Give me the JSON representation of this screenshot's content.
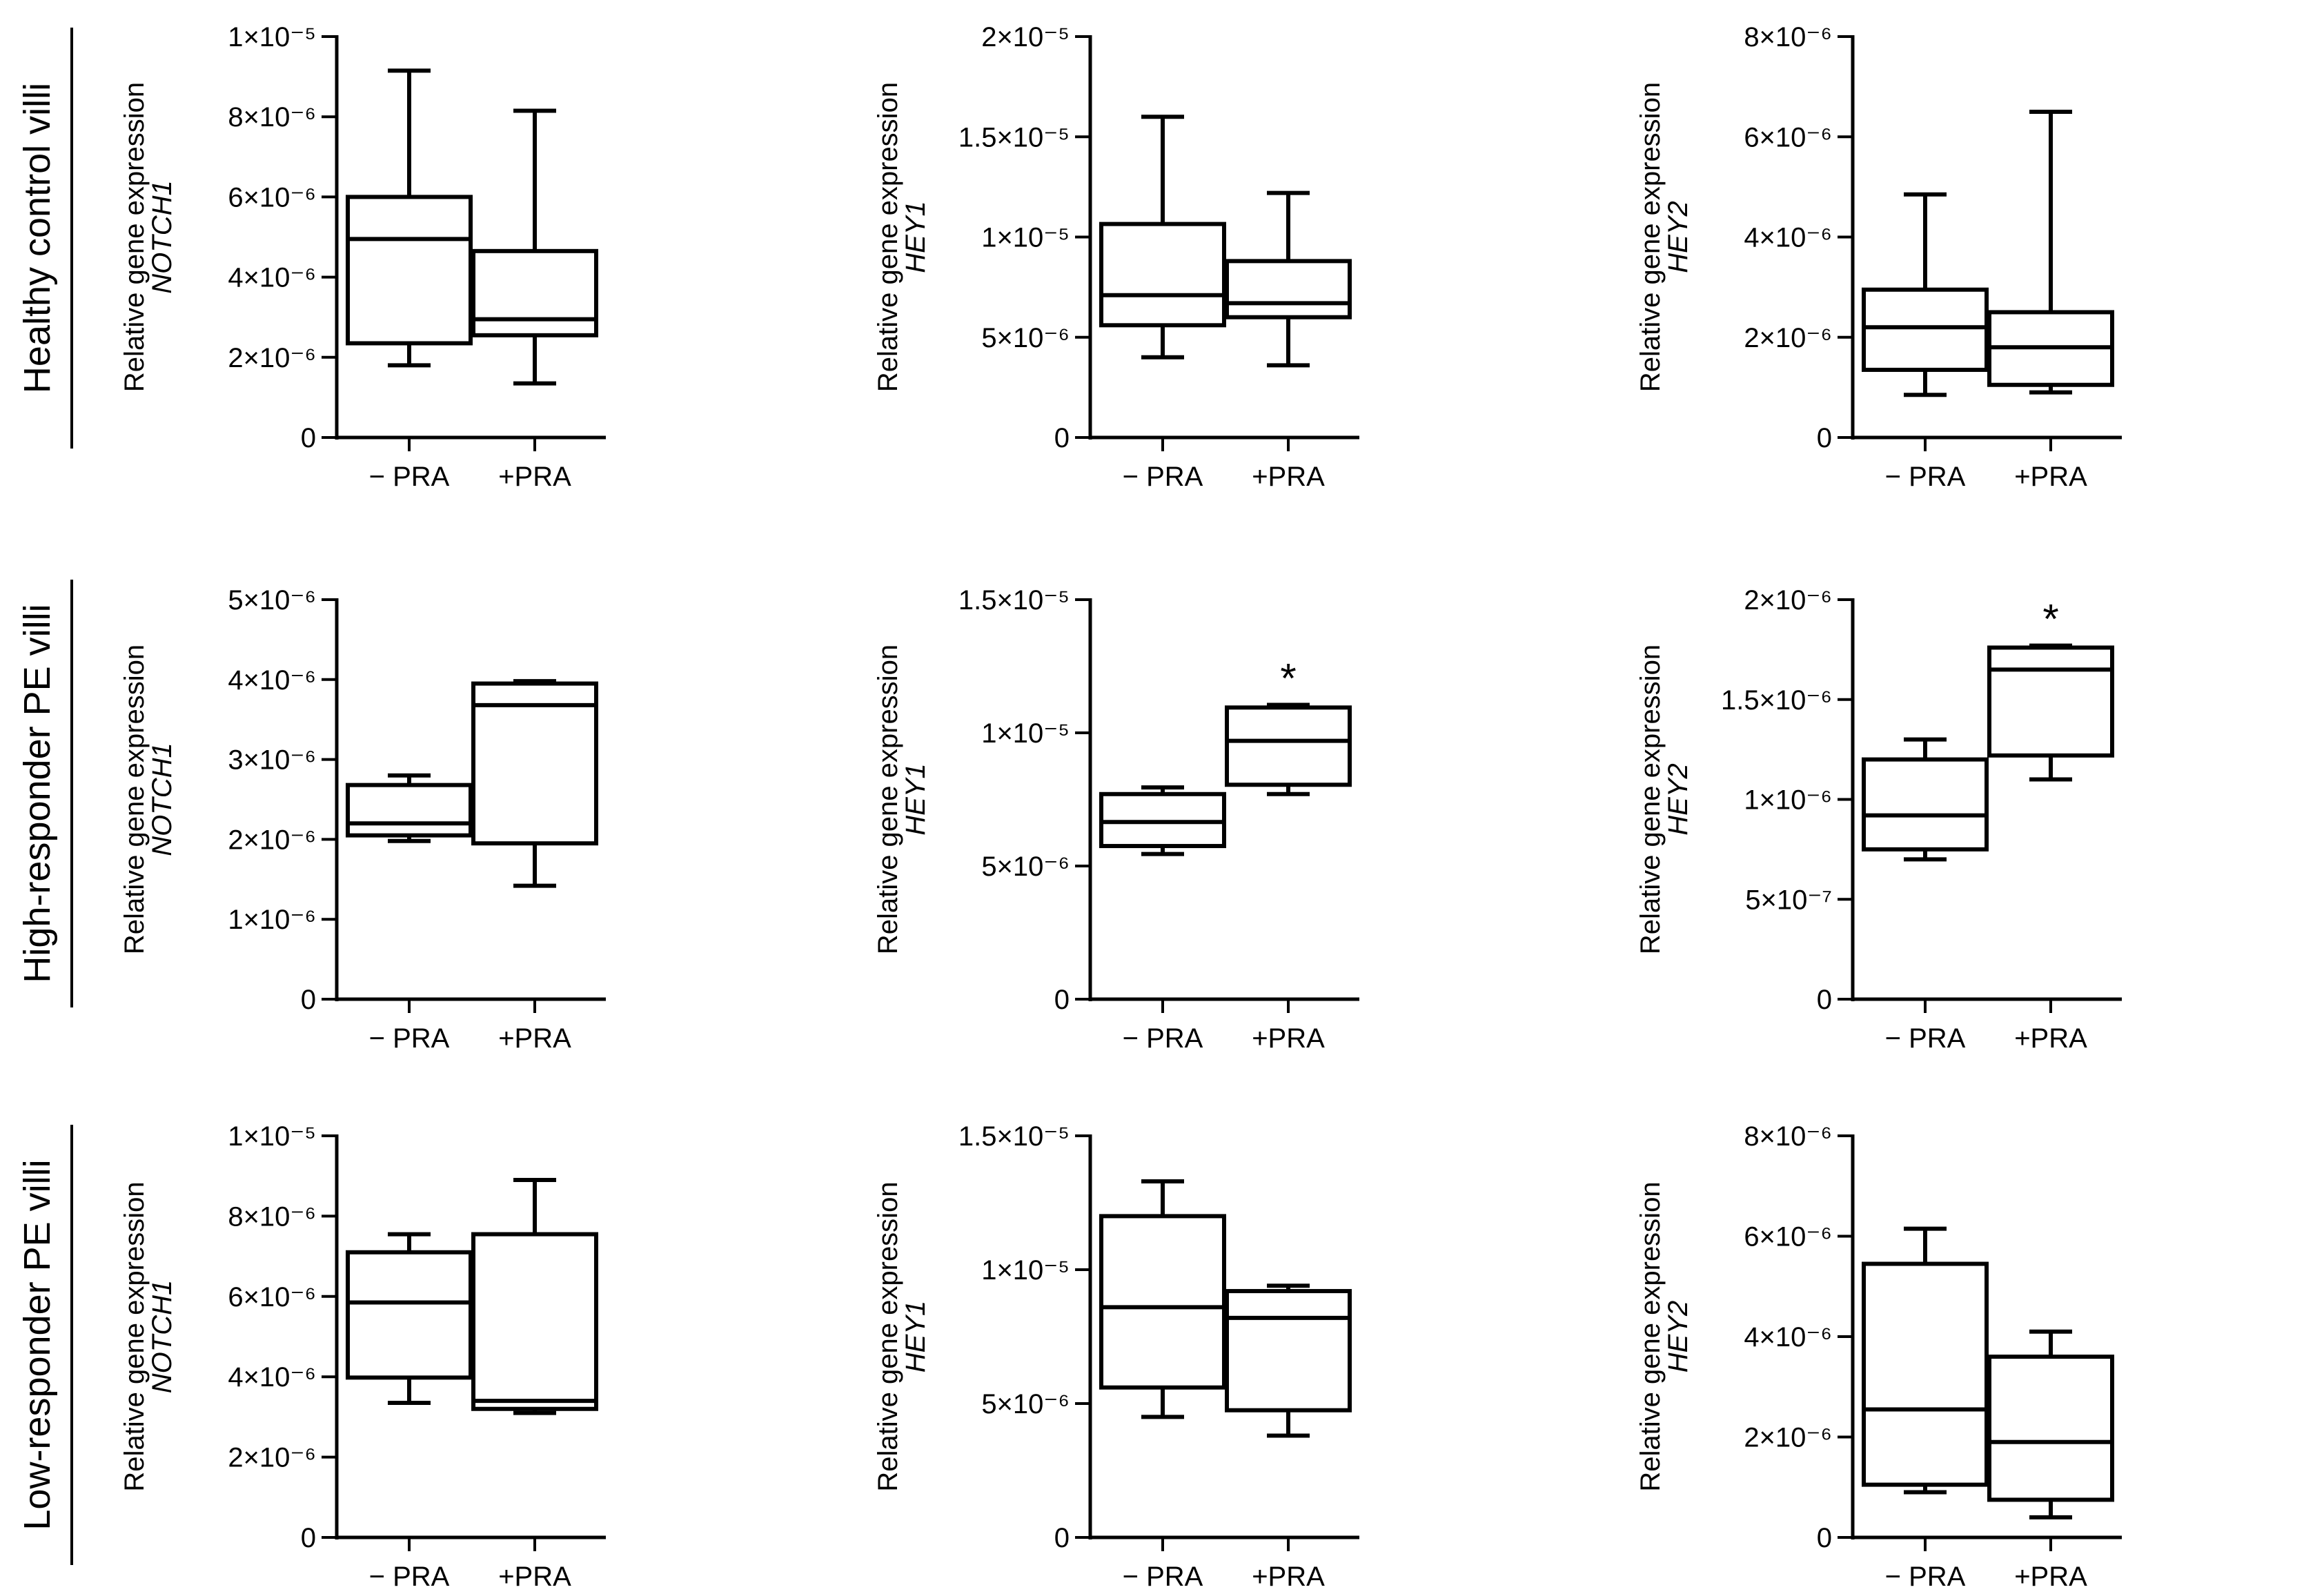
{
  "x_categories": [
    "− PRA",
    "+PRA"
  ],
  "y_label_prefix": "Relative gene expression",
  "rows": [
    {
      "label": "Healthy control villi"
    },
    {
      "label": "High-responder PE villi"
    },
    {
      "label": "Low-responder PE villi"
    }
  ],
  "chart_data": [
    {
      "type": "box",
      "row": 0,
      "col": 0,
      "gene": "NOTCH1",
      "ylim": [
        0,
        1e-05
      ],
      "ticks": [
        {
          "value": 0,
          "label": "0"
        },
        {
          "value": 2e-06,
          "label": "2×10⁻⁶"
        },
        {
          "value": 4e-06,
          "label": "4×10⁻⁶"
        },
        {
          "value": 6e-06,
          "label": "6×10⁻⁶"
        },
        {
          "value": 8e-06,
          "label": "8×10⁻⁶"
        },
        {
          "value": 1e-05,
          "label": "1×10⁻⁵"
        }
      ],
      "boxes": [
        {
          "min": 1.8e-06,
          "q1": 2.35e-06,
          "median": 4.95e-06,
          "q3": 6e-06,
          "max": 9.15e-06
        },
        {
          "min": 1.35e-06,
          "q1": 2.55e-06,
          "median": 2.95e-06,
          "q3": 4.65e-06,
          "max": 8.15e-06
        }
      ],
      "significance": [
        "",
        ""
      ]
    },
    {
      "type": "box",
      "row": 0,
      "col": 1,
      "gene": "HEY1",
      "ylim": [
        0,
        2e-05
      ],
      "ticks": [
        {
          "value": 0,
          "label": "0"
        },
        {
          "value": 5e-06,
          "label": "5×10⁻⁶"
        },
        {
          "value": 1e-05,
          "label": "1×10⁻⁵"
        },
        {
          "value": 1.5e-05,
          "label": "1.5×10⁻⁵"
        },
        {
          "value": 2e-05,
          "label": "2×10⁻⁵"
        }
      ],
      "boxes": [
        {
          "min": 4e-06,
          "q1": 5.6e-06,
          "median": 7.1e-06,
          "q3": 1.065e-05,
          "max": 1.6e-05
        },
        {
          "min": 3.6e-06,
          "q1": 6e-06,
          "median": 6.7e-06,
          "q3": 8.8e-06,
          "max": 1.22e-05
        }
      ],
      "significance": [
        "",
        ""
      ]
    },
    {
      "type": "box",
      "row": 0,
      "col": 2,
      "gene": "HEY2",
      "ylim": [
        0,
        8e-06
      ],
      "ticks": [
        {
          "value": 0,
          "label": "0"
        },
        {
          "value": 2e-06,
          "label": "2×10⁻⁶"
        },
        {
          "value": 4e-06,
          "label": "4×10⁻⁶"
        },
        {
          "value": 6e-06,
          "label": "6×10⁻⁶"
        },
        {
          "value": 8e-06,
          "label": "8×10⁻⁶"
        }
      ],
      "boxes": [
        {
          "min": 8.5e-07,
          "q1": 1.35e-06,
          "median": 2.2e-06,
          "q3": 2.95e-06,
          "max": 4.85e-06
        },
        {
          "min": 9e-07,
          "q1": 1.05e-06,
          "median": 1.8e-06,
          "q3": 2.5e-06,
          "max": 6.5e-06
        }
      ],
      "significance": [
        "",
        ""
      ]
    },
    {
      "type": "box",
      "row": 1,
      "col": 0,
      "gene": "NOTCH1",
      "ylim": [
        0,
        5e-06
      ],
      "ticks": [
        {
          "value": 0,
          "label": "0"
        },
        {
          "value": 1e-06,
          "label": "1×10⁻⁶"
        },
        {
          "value": 2e-06,
          "label": "2×10⁻⁶"
        },
        {
          "value": 3e-06,
          "label": "3×10⁻⁶"
        },
        {
          "value": 4e-06,
          "label": "4×10⁻⁶"
        },
        {
          "value": 5e-06,
          "label": "5×10⁻⁶"
        }
      ],
      "boxes": [
        {
          "min": 1.98e-06,
          "q1": 2.05e-06,
          "median": 2.2e-06,
          "q3": 2.68e-06,
          "max": 2.8e-06
        },
        {
          "min": 1.42e-06,
          "q1": 1.95e-06,
          "median": 3.68e-06,
          "q3": 3.95e-06,
          "max": 3.98e-06
        }
      ],
      "significance": [
        "",
        ""
      ]
    },
    {
      "type": "box",
      "row": 1,
      "col": 1,
      "gene": "HEY1",
      "ylim": [
        0,
        1.5e-05
      ],
      "ticks": [
        {
          "value": 0,
          "label": "0"
        },
        {
          "value": 5e-06,
          "label": "5×10⁻⁶"
        },
        {
          "value": 1e-05,
          "label": "1×10⁻⁵"
        },
        {
          "value": 1.5e-05,
          "label": "1.5×10⁻⁵"
        }
      ],
      "boxes": [
        {
          "min": 5.45e-06,
          "q1": 5.75e-06,
          "median": 6.65e-06,
          "q3": 7.7e-06,
          "max": 7.95e-06
        },
        {
          "min": 7.7e-06,
          "q1": 8.05e-06,
          "median": 9.7e-06,
          "q3": 1.095e-05,
          "max": 1.105e-05
        }
      ],
      "significance": [
        "",
        "*"
      ]
    },
    {
      "type": "box",
      "row": 1,
      "col": 2,
      "gene": "HEY2",
      "ylim": [
        0,
        2e-06
      ],
      "ticks": [
        {
          "value": 0,
          "label": "0"
        },
        {
          "value": 5e-07,
          "label": "5×10⁻⁷"
        },
        {
          "value": 1e-06,
          "label": "1×10⁻⁶"
        },
        {
          "value": 1.5e-06,
          "label": "1.5×10⁻⁶"
        },
        {
          "value": 2e-06,
          "label": "2×10⁻⁶"
        }
      ],
      "boxes": [
        {
          "min": 7e-07,
          "q1": 7.5e-07,
          "median": 9.2e-07,
          "q3": 1.2e-06,
          "max": 1.3e-06
        },
        {
          "min": 1.1e-06,
          "q1": 1.22e-06,
          "median": 1.65e-06,
          "q3": 1.76e-06,
          "max": 1.77e-06
        }
      ],
      "significance": [
        "",
        "*"
      ]
    },
    {
      "type": "box",
      "row": 2,
      "col": 0,
      "gene": "NOTCH1",
      "ylim": [
        0,
        1e-05
      ],
      "ticks": [
        {
          "value": 0,
          "label": "0"
        },
        {
          "value": 2e-06,
          "label": "2×10⁻⁶"
        },
        {
          "value": 4e-06,
          "label": "4×10⁻⁶"
        },
        {
          "value": 6e-06,
          "label": "6×10⁻⁶"
        },
        {
          "value": 8e-06,
          "label": "8×10⁻⁶"
        },
        {
          "value": 1e-05,
          "label": "1×10⁻⁵"
        }
      ],
      "boxes": [
        {
          "min": 3.35e-06,
          "q1": 3.98e-06,
          "median": 5.85e-06,
          "q3": 7.1e-06,
          "max": 7.55e-06
        },
        {
          "min": 3.1e-06,
          "q1": 3.2e-06,
          "median": 3.4e-06,
          "q3": 7.55e-06,
          "max": 8.9e-06
        }
      ],
      "significance": [
        "",
        ""
      ]
    },
    {
      "type": "box",
      "row": 2,
      "col": 1,
      "gene": "HEY1",
      "ylim": [
        0,
        1.5e-05
      ],
      "ticks": [
        {
          "value": 0,
          "label": "0"
        },
        {
          "value": 5e-06,
          "label": "5×10⁻⁶"
        },
        {
          "value": 1e-05,
          "label": "1×10⁻⁵"
        },
        {
          "value": 1.5e-05,
          "label": "1.5×10⁻⁵"
        }
      ],
      "boxes": [
        {
          "min": 4.5e-06,
          "q1": 5.6e-06,
          "median": 8.6e-06,
          "q3": 1.2e-05,
          "max": 1.33e-05
        },
        {
          "min": 3.8e-06,
          "q1": 4.75e-06,
          "median": 8.2e-06,
          "q3": 9.2e-06,
          "max": 9.4e-06
        }
      ],
      "significance": [
        "",
        ""
      ]
    },
    {
      "type": "box",
      "row": 2,
      "col": 2,
      "gene": "HEY2",
      "ylim": [
        0,
        8e-06
      ],
      "ticks": [
        {
          "value": 0,
          "label": "0"
        },
        {
          "value": 2e-06,
          "label": "2×10⁻⁶"
        },
        {
          "value": 4e-06,
          "label": "4×10⁻⁶"
        },
        {
          "value": 6e-06,
          "label": "6×10⁻⁶"
        },
        {
          "value": 8e-06,
          "label": "8×10⁻⁶"
        }
      ],
      "boxes": [
        {
          "min": 9e-07,
          "q1": 1.05e-06,
          "median": 2.55e-06,
          "q3": 5.45e-06,
          "max": 6.15e-06
        },
        {
          "min": 4e-07,
          "q1": 7.5e-07,
          "median": 1.9e-06,
          "q3": 3.6e-06,
          "max": 4.1e-06
        }
      ],
      "significance": [
        "",
        ""
      ]
    }
  ]
}
